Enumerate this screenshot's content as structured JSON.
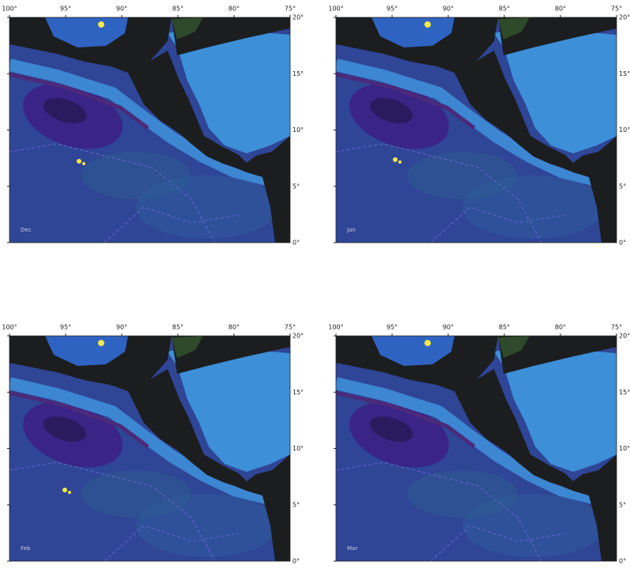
{
  "panels": [
    {
      "label": "Dec"
    },
    {
      "label": "Jan"
    },
    {
      "label": "Feb"
    },
    {
      "label": "Mar"
    }
  ],
  "lon_labels": [
    "100°",
    "95°",
    "90°",
    "85°",
    "80°",
    "75°"
  ],
  "lat_labels": [
    "20°",
    "15°",
    "10°",
    "5°",
    "0°"
  ]
}
